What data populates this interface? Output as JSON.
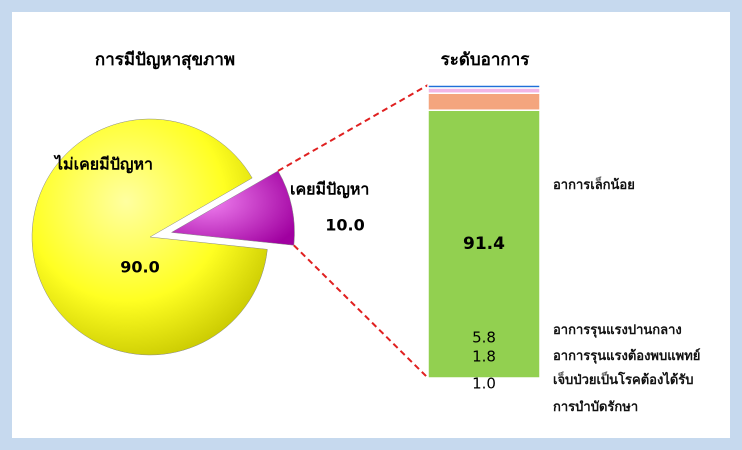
{
  "chart_data": [
    {
      "type": "pie",
      "title": "การมีปัญหาสุขภาพ",
      "categories": [
        "ไม่เคยมีปัญหา",
        "เคยมีปัญหา"
      ],
      "values": [
        90.0,
        10.0
      ],
      "value_labels": [
        "90.0",
        "10.0"
      ],
      "colors": [
        "#ffff33",
        "#cc22cc"
      ]
    },
    {
      "type": "stacked-bar",
      "title": "ระดับอาการ",
      "series": [
        {
          "name": "อาการเล็กน้อย",
          "color": "#92d050",
          "values": [
            91.4
          ],
          "value_labels": [
            "91.4"
          ]
        },
        {
          "name": "อาการรุนแรงปานกลาง",
          "color": "#f4a57e",
          "values": [
            5.8
          ],
          "value_labels": [
            "5.8"
          ]
        },
        {
          "name": "อาการรุนแรงต้องพบแพทย์",
          "color": "#f2b6e6",
          "values": [
            1.8
          ],
          "value_labels": [
            "1.8"
          ]
        },
        {
          "name": "เจ็บป่วยเป็นโรคต้องได้รับ\nการบำบัดรักษา",
          "color": "#1f6fd8",
          "values": [
            1.0
          ],
          "value_labels": [
            "1.0"
          ]
        }
      ]
    }
  ]
}
